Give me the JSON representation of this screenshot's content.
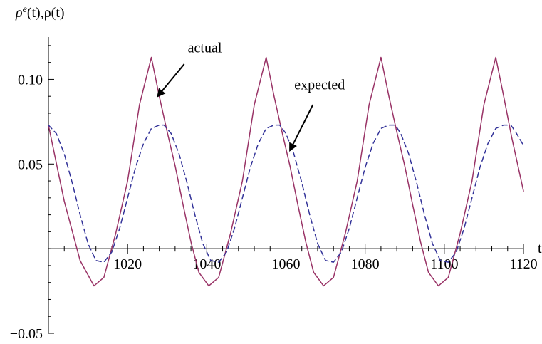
{
  "chart_data": {
    "type": "line",
    "title": "",
    "xlabel": "t",
    "ylabel_main": "ρ",
    "ylabel_sup": "e",
    "ylabel_rest": "(t),ρ(t)",
    "xlim": [
      1000,
      1120
    ],
    "ylim": [
      -0.05,
      0.125
    ],
    "xticks": [
      1020,
      1040,
      1060,
      1080,
      1100,
      1120
    ],
    "xtick_labels": [
      "1020",
      "1040",
      "1060",
      "1080",
      "1100",
      "1120"
    ],
    "yticks": [
      -0.05,
      0.05,
      0.1
    ],
    "ytick_labels": [
      "−0.05",
      "0.05",
      "0.10"
    ],
    "grid": false,
    "series": [
      {
        "name": "actual",
        "style": "solid",
        "color": "#993366",
        "points": [
          [
            1000,
            0.073
          ],
          [
            1004,
            0.028
          ],
          [
            1008,
            -0.007
          ],
          [
            1011.5,
            -0.022
          ],
          [
            1014,
            -0.017
          ],
          [
            1017,
            0.009
          ],
          [
            1020,
            0.04
          ],
          [
            1023,
            0.085
          ],
          [
            1026,
            0.113
          ],
          [
            1028,
            0.09
          ],
          [
            1030,
            0.069
          ],
          [
            1032,
            0.049
          ],
          [
            1034,
            0.026
          ],
          [
            1036,
            0.004
          ],
          [
            1038,
            -0.014
          ],
          [
            1040.5,
            -0.022
          ],
          [
            1043,
            -0.017
          ],
          [
            1046,
            0.009
          ],
          [
            1049,
            0.04
          ],
          [
            1052,
            0.085
          ],
          [
            1055,
            0.113
          ],
          [
            1057,
            0.09
          ],
          [
            1059,
            0.069
          ],
          [
            1061,
            0.049
          ],
          [
            1063,
            0.026
          ],
          [
            1065,
            0.004
          ],
          [
            1067,
            -0.014
          ],
          [
            1069.5,
            -0.022
          ],
          [
            1072,
            -0.017
          ],
          [
            1075,
            0.009
          ],
          [
            1078,
            0.04
          ],
          [
            1081,
            0.085
          ],
          [
            1084,
            0.113
          ],
          [
            1086,
            0.09
          ],
          [
            1088,
            0.069
          ],
          [
            1090,
            0.049
          ],
          [
            1092,
            0.026
          ],
          [
            1094,
            0.004
          ],
          [
            1096,
            -0.014
          ],
          [
            1098.5,
            -0.022
          ],
          [
            1101,
            -0.017
          ],
          [
            1104,
            0.009
          ],
          [
            1107,
            0.04
          ],
          [
            1110,
            0.085
          ],
          [
            1113,
            0.113
          ],
          [
            1115,
            0.09
          ],
          [
            1117,
            0.066
          ],
          [
            1120,
            0.034
          ]
        ]
      },
      {
        "name": "expected",
        "style": "dashed",
        "color": "#333399",
        "points": [
          [
            1000,
            0.073
          ],
          [
            1002,
            0.068
          ],
          [
            1004,
            0.056
          ],
          [
            1006,
            0.039
          ],
          [
            1008,
            0.02
          ],
          [
            1010,
            0.003
          ],
          [
            1012,
            -0.007
          ],
          [
            1014,
            -0.008
          ],
          [
            1016,
            -0.002
          ],
          [
            1018,
            0.012
          ],
          [
            1020,
            0.03
          ],
          [
            1022,
            0.048
          ],
          [
            1024,
            0.062
          ],
          [
            1026,
            0.071
          ],
          [
            1028,
            0.073
          ],
          [
            1029.2,
            0.073
          ],
          [
            1031,
            0.068
          ],
          [
            1033,
            0.056
          ],
          [
            1035,
            0.039
          ],
          [
            1037,
            0.02
          ],
          [
            1039,
            0.003
          ],
          [
            1041,
            -0.007
          ],
          [
            1043,
            -0.008
          ],
          [
            1045,
            -0.002
          ],
          [
            1047,
            0.012
          ],
          [
            1049,
            0.03
          ],
          [
            1051,
            0.048
          ],
          [
            1053,
            0.062
          ],
          [
            1055,
            0.071
          ],
          [
            1057,
            0.073
          ],
          [
            1058.4,
            0.073
          ],
          [
            1060,
            0.068
          ],
          [
            1062,
            0.056
          ],
          [
            1064,
            0.039
          ],
          [
            1066,
            0.02
          ],
          [
            1068,
            0.003
          ],
          [
            1070,
            -0.007
          ],
          [
            1072,
            -0.008
          ],
          [
            1074,
            -0.002
          ],
          [
            1076,
            0.012
          ],
          [
            1078,
            0.03
          ],
          [
            1080,
            0.048
          ],
          [
            1082,
            0.062
          ],
          [
            1084,
            0.071
          ],
          [
            1086,
            0.073
          ],
          [
            1087.6,
            0.073
          ],
          [
            1089,
            0.068
          ],
          [
            1091,
            0.056
          ],
          [
            1093,
            0.039
          ],
          [
            1095,
            0.02
          ],
          [
            1097,
            0.003
          ],
          [
            1099,
            -0.007
          ],
          [
            1101,
            -0.008
          ],
          [
            1103,
            -0.002
          ],
          [
            1105,
            0.012
          ],
          [
            1107,
            0.03
          ],
          [
            1109,
            0.048
          ],
          [
            1111,
            0.062
          ],
          [
            1113,
            0.071
          ],
          [
            1115,
            0.073
          ],
          [
            1116.8,
            0.073
          ],
          [
            1118,
            0.069
          ],
          [
            1120,
            0.061
          ]
        ]
      }
    ],
    "annotations": [
      {
        "text": "actual",
        "text_at": [
          1039.5,
          0.116
        ],
        "arrow_tail": [
          1034.3,
          0.109
        ],
        "arrow_head": [
          1027.6,
          0.09
        ]
      },
      {
        "text": "expected",
        "text_at": [
          1068.5,
          0.094
        ],
        "arrow_tail": [
          1066.8,
          0.085
        ],
        "arrow_head": [
          1061.0,
          0.058
        ]
      }
    ]
  }
}
